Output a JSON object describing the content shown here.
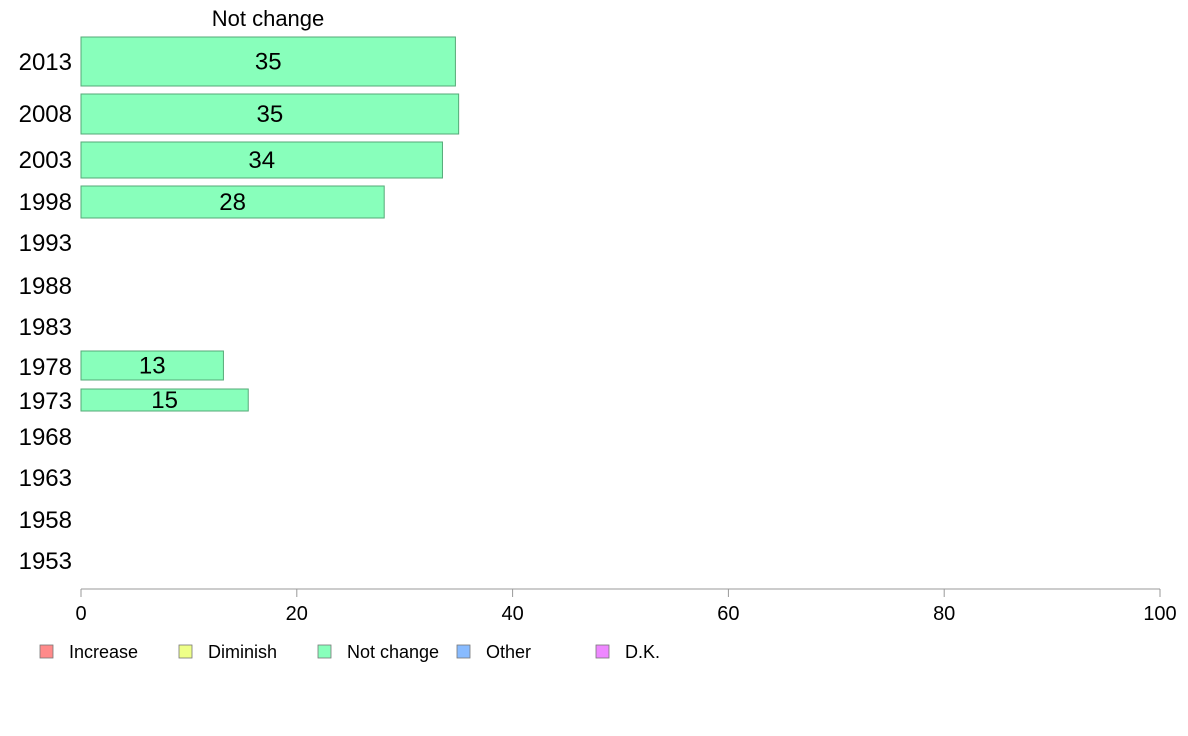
{
  "chart_data": {
    "type": "bar",
    "orientation": "horizontal",
    "title": "Not change",
    "xlim": [
      0,
      100
    ],
    "xticks": [
      0,
      20,
      40,
      60,
      80,
      100
    ],
    "categories": [
      "2013",
      "2008",
      "2003",
      "1998",
      "1993",
      "1988",
      "1983",
      "1978",
      "1973",
      "1968",
      "1963",
      "1958",
      "1953"
    ],
    "series": [
      {
        "name": "Not change",
        "values": [
          34.7,
          35.0,
          33.5,
          28.1,
          null,
          null,
          null,
          13.2,
          15.5,
          null,
          null,
          null,
          null
        ],
        "labels": [
          "35",
          "35",
          "34",
          "28",
          "",
          "",
          "",
          "13",
          "15",
          "",
          "",
          "",
          ""
        ]
      }
    ],
    "grid": false,
    "legend": {
      "placement": "bottom",
      "items": [
        {
          "label": "Increase",
          "color": "#ff8a8a"
        },
        {
          "label": "Diminish",
          "color": "#eeff88"
        },
        {
          "label": "Not change",
          "color": "#88ffbb"
        },
        {
          "label": "Other",
          "color": "#88bbff"
        },
        {
          "label": "D.K.",
          "color": "#ee88ff"
        }
      ]
    },
    "bar_color": "#88ffbb",
    "bar_stroke": "#55aa77"
  }
}
